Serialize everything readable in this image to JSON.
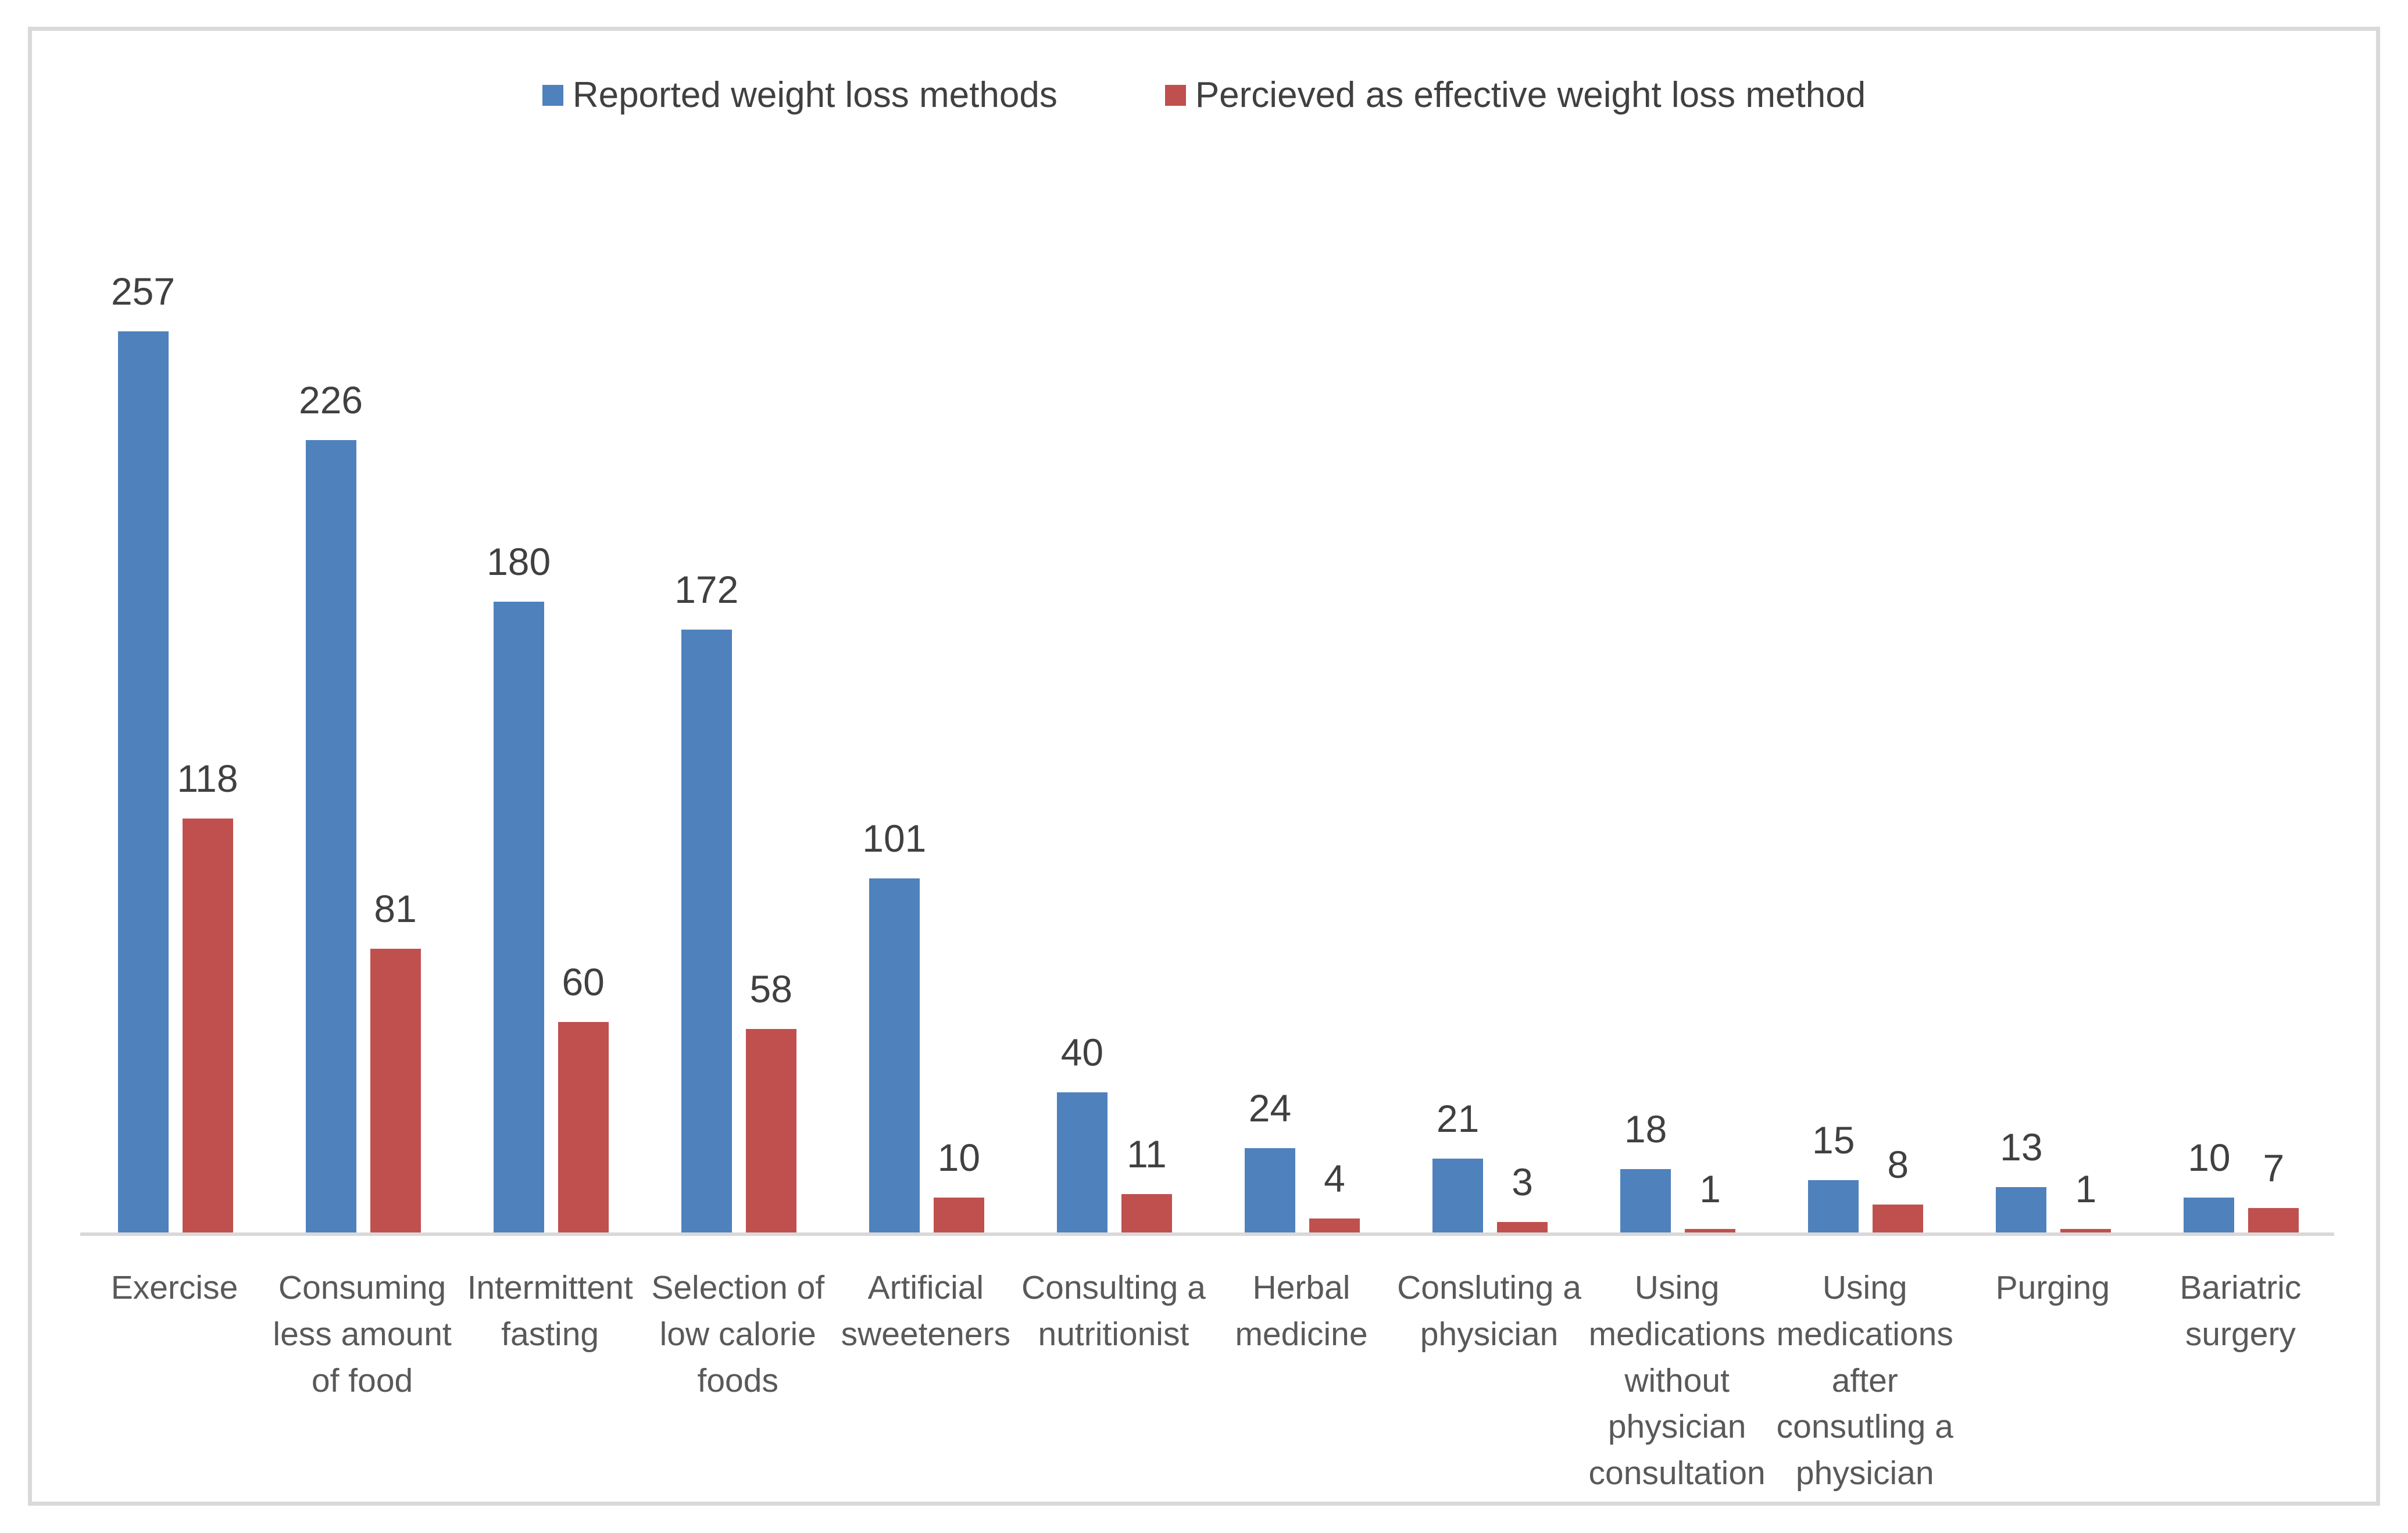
{
  "chart_data": {
    "type": "bar",
    "title": "",
    "xlabel": "",
    "ylabel": "",
    "ylim": [
      0,
      280
    ],
    "grid": false,
    "legend_position": "top-center",
    "axis_line_color": "#D9D9D9",
    "value_label_color": "#404040",
    "category_label_color": "#595959",
    "categories": [
      "Exercise",
      "Consuming less amount of food",
      "Intermittent fasting",
      "Selection of low calorie foods",
      "Artificial sweeteners",
      "Consulting a nutritionist",
      "Herbal medicine",
      "Consluting a physician",
      "Using medications without physician consultation",
      "Using medications after consutling a physician",
      "Purging",
      "Bariatric surgery"
    ],
    "series": [
      {
        "name": "Reported weight loss methods",
        "color": "#4F81BD",
        "values": [
          257,
          226,
          180,
          172,
          101,
          40,
          24,
          21,
          18,
          15,
          13,
          10
        ]
      },
      {
        "name": "Percieved as effective weight loss method",
        "color": "#C0504D",
        "values": [
          118,
          81,
          60,
          58,
          10,
          11,
          4,
          3,
          1,
          8,
          1,
          7
        ]
      }
    ]
  }
}
